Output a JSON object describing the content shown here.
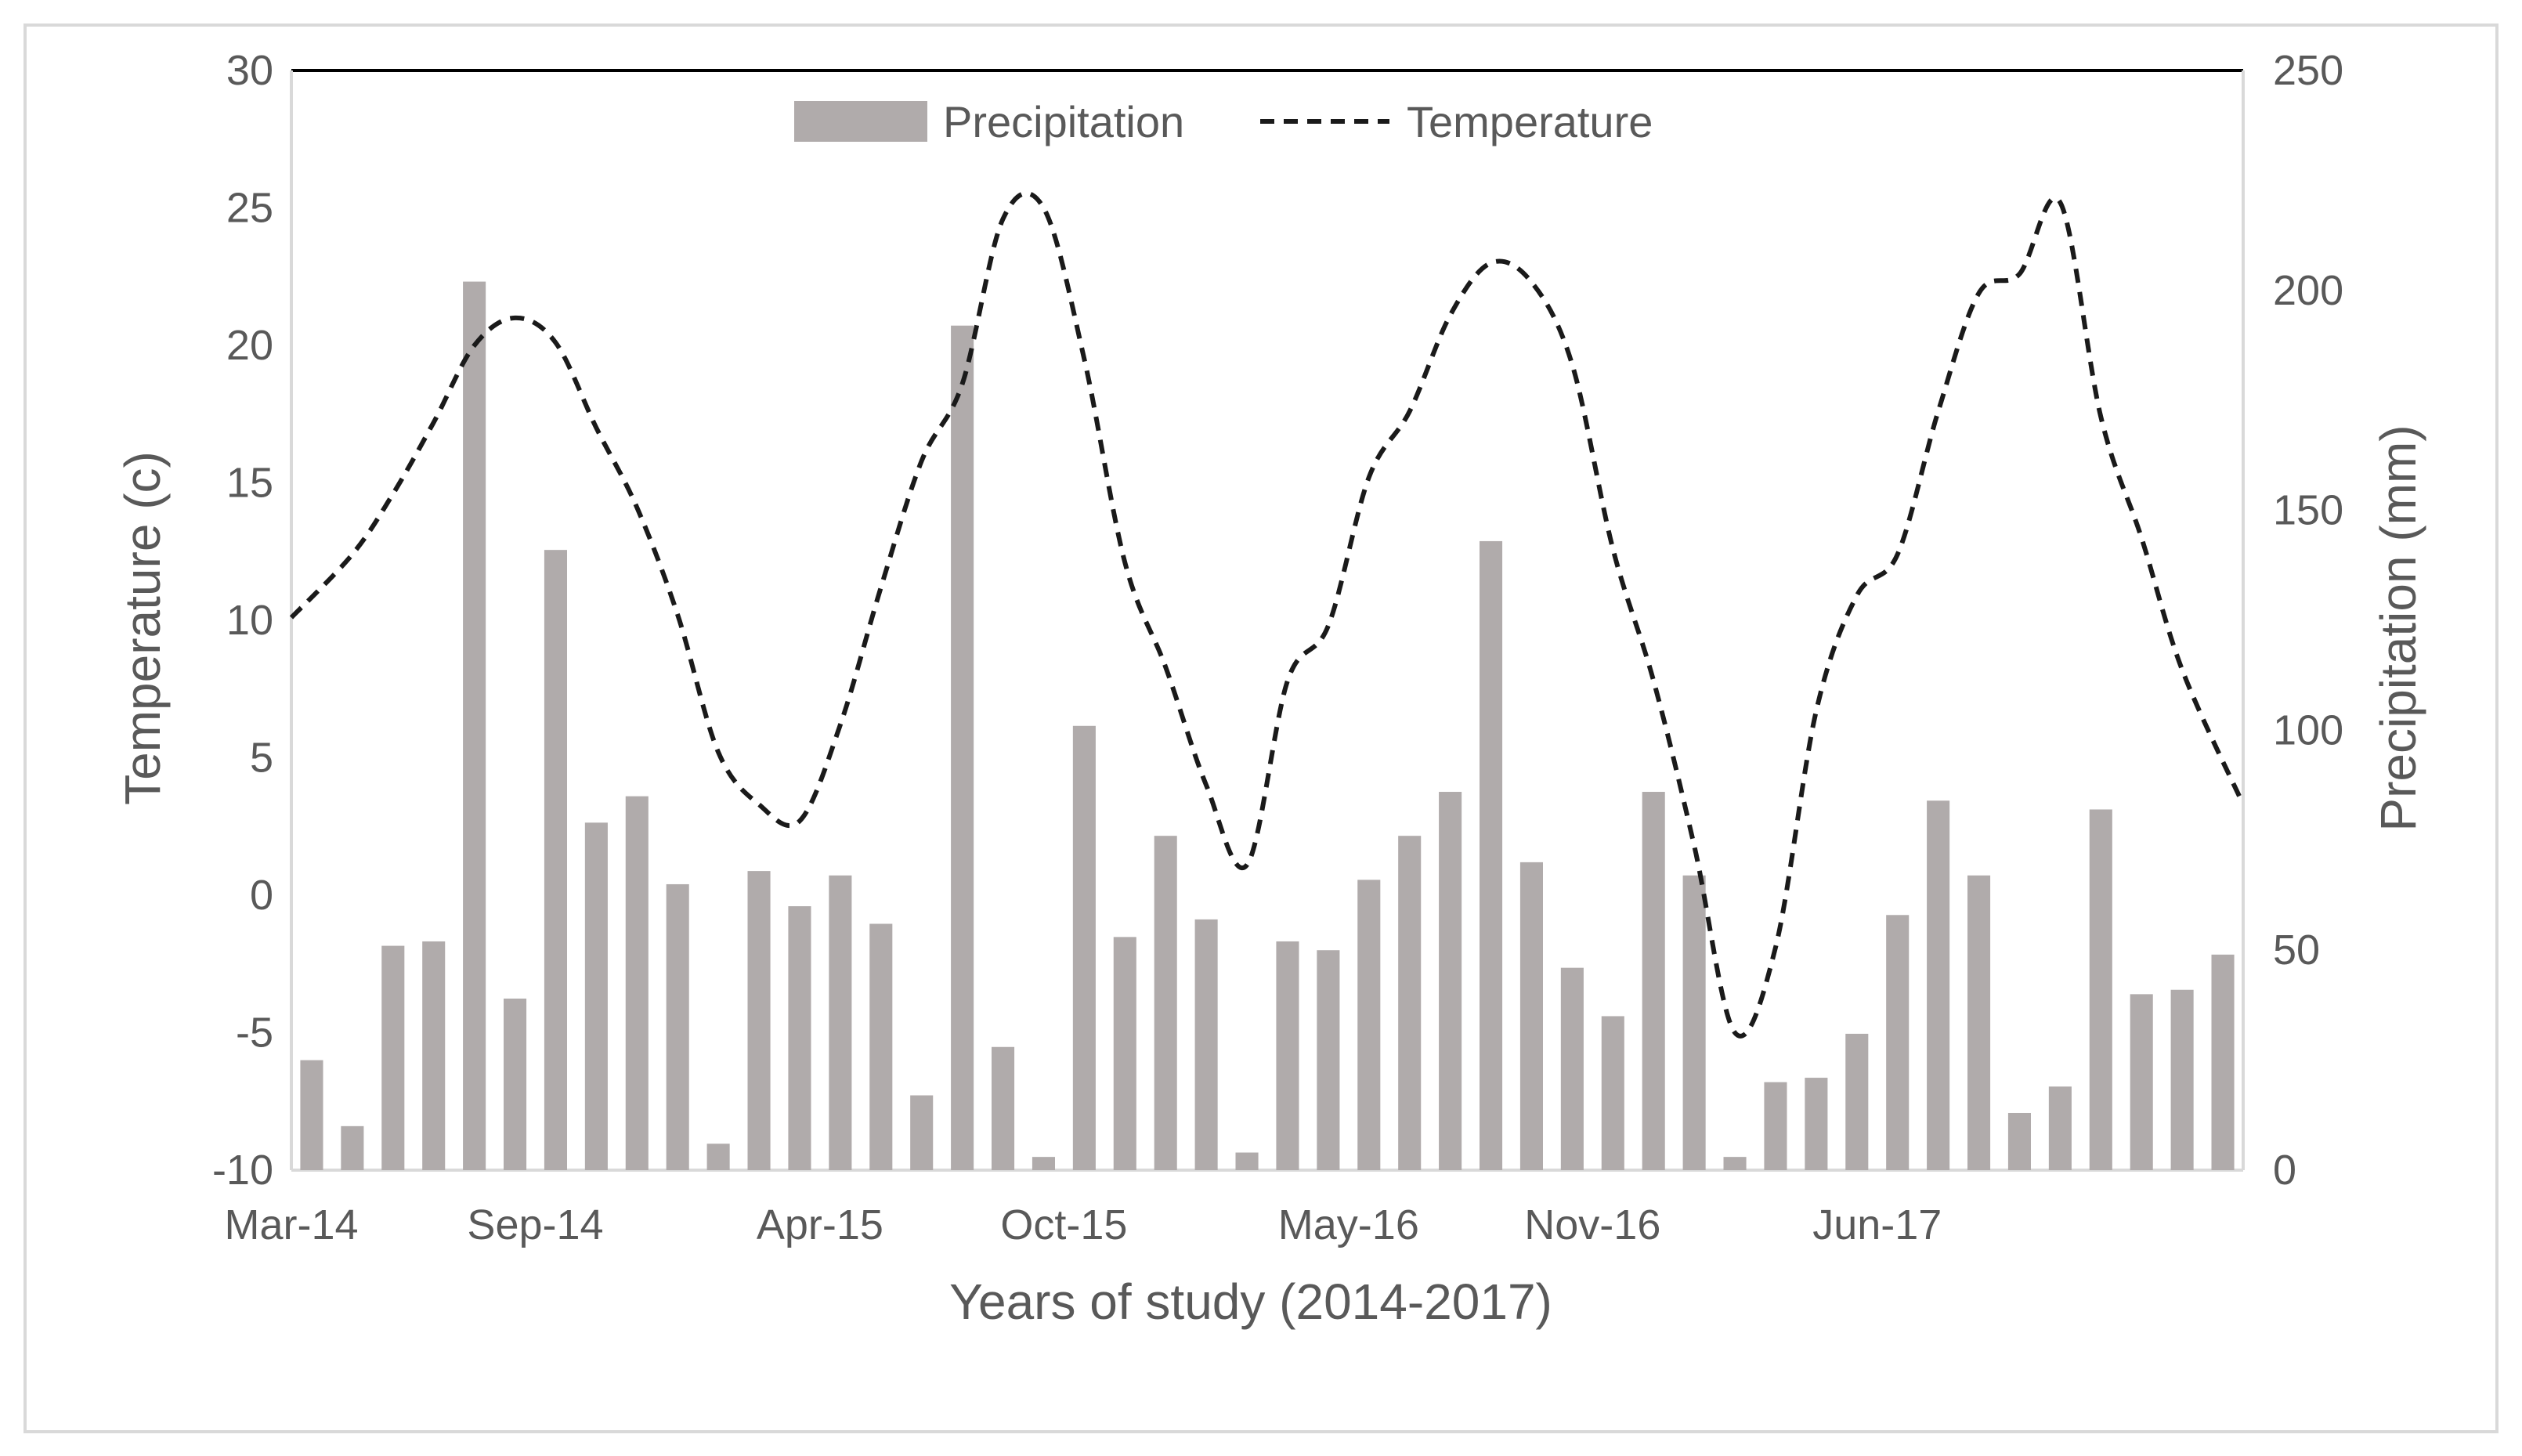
{
  "colors": {
    "bar": "#b0abab",
    "line": "#1a1a1a",
    "axis": "#d9d9d9",
    "top_line": "#000000",
    "text": "#595959"
  },
  "chart_data": {
    "type": "bar+line",
    "title": "",
    "xlabel": "Years of study (2014-2017)",
    "ylabel_left": "Temperature (c)",
    "ylabel_right": "Precipitation (mm)",
    "ylim_left": [
      -10,
      30
    ],
    "ylim_right": [
      0,
      250
    ],
    "yticks_left": [
      "30",
      "25",
      "20",
      "15",
      "10",
      "5",
      "0",
      "-5",
      "-10"
    ],
    "yticks_right": [
      "250",
      "200",
      "150",
      "100",
      "50",
      "0"
    ],
    "x_tick_labels": [
      "Mar-14",
      "Sep-14",
      "Apr-15",
      "Oct-15",
      "May-16",
      "Nov-16",
      "Jun-17"
    ],
    "x_tick_indices": [
      0,
      6,
      13,
      19,
      26,
      32,
      39
    ],
    "legend": {
      "placement": "top-center",
      "precipitation": "Precipitation",
      "temperature": "Temperature"
    },
    "categories": [
      "Mar-14",
      "Apr-14",
      "May-14",
      "Jun-14",
      "Jul-14",
      "Aug-14",
      "Sep-14",
      "Oct-14",
      "Nov-14",
      "Dec-14",
      "Jan-15",
      "Feb-15",
      "Mar-15",
      "Apr-15",
      "May-15",
      "Jun-15",
      "Jul-15",
      "Aug-15",
      "Sep-15",
      "Oct-15",
      "Nov-15",
      "Dec-15",
      "Jan-16",
      "Feb-16",
      "Mar-16",
      "Apr-16",
      "May-16",
      "Jun-16",
      "Jul-16",
      "Aug-16",
      "Sep-16",
      "Oct-16",
      "Nov-16",
      "Dec-16",
      "Jan-17",
      "Feb-17",
      "Mar-17",
      "Apr-17",
      "May-17",
      "Jun-17",
      "Jul-17",
      "Aug-17",
      "Sep-17",
      "Oct-17",
      "Nov-17",
      "Dec-17",
      "Jan-18",
      "Feb-18"
    ],
    "series": [
      {
        "name": "Precipitation",
        "type": "bar",
        "axis": "right",
        "values": [
          25,
          10,
          51,
          52,
          202,
          39,
          141,
          79,
          85,
          65,
          6,
          68,
          60,
          67,
          56,
          17,
          192,
          28,
          3,
          101,
          53,
          76,
          57,
          4,
          52,
          50,
          66,
          76,
          86,
          143,
          70,
          46,
          35,
          86,
          67,
          3,
          20,
          21,
          31,
          58,
          84,
          67,
          13,
          19,
          82,
          40,
          41,
          49
        ]
      },
      {
        "name": "Temperature",
        "type": "line",
        "axis": "left",
        "values": [
          10.1,
          12.4,
          14.6,
          17.2,
          20.0,
          21.0,
          20.1,
          17.0,
          14.1,
          10.2,
          5.2,
          3.3,
          2.7,
          6.2,
          11.2,
          15.8,
          18.6,
          24.6,
          25.0,
          19.5,
          12.1,
          8.3,
          4.0,
          1.1,
          7.8,
          9.8,
          15.2,
          17.6,
          21.1,
          23.0,
          22.3,
          19.3,
          12.6,
          7.8,
          1.8,
          -5.0,
          -1.9,
          6.7,
          10.9,
          12.4,
          17.6,
          21.9,
          22.6,
          25.2,
          17.4,
          13.0,
          8.2,
          3.3
        ]
      }
    ]
  }
}
